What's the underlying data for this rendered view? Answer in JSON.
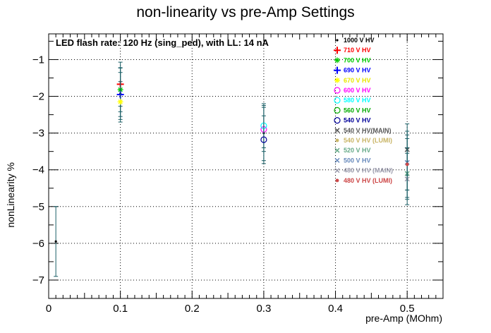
{
  "chart_data": {
    "type": "scatter",
    "title": "non-linearity vs pre-Amp Settings",
    "annotation": "LED flash rate: 120 Hz  (sing_ped), with LL: 14 nA",
    "xlabel": "pre-Amp (MOhm)",
    "ylabel": "nonLinearity %",
    "xlim": [
      0,
      0.55
    ],
    "ylim": [
      -7.5,
      -0.3
    ],
    "x_ticks": [
      0,
      0.1,
      0.2,
      0.3,
      0.4,
      0.5
    ],
    "x_tick_labels": [
      "0",
      "0.1",
      "0.2",
      "0.3",
      "0.4",
      "0.5"
    ],
    "y_ticks": [
      -7,
      -6,
      -5,
      -4,
      -3,
      -2,
      -1
    ],
    "y_tick_labels": [
      "−7",
      "−6",
      "−5",
      "−4",
      "−3",
      "−2",
      "−1"
    ],
    "grid": true,
    "legend_position": "top-right",
    "series": [
      {
        "name": "1000 V HV",
        "color": "#000000",
        "marker": "dot",
        "points": [
          {
            "x": 0.01,
            "y": -5.95,
            "err": 0.95
          },
          {
            "x": 0.1,
            "y": -1.93,
            "err": 0.7
          },
          {
            "x": 0.3,
            "y": -3.0,
            "err": 0.75
          },
          {
            "x": 0.5,
            "y": -3.85,
            "err": 0.9
          }
        ]
      },
      {
        "name": "710 V HV",
        "color": "#ff0000",
        "marker": "plus",
        "points": [
          {
            "x": 0.1,
            "y": -1.67,
            "err": 0.6
          }
        ]
      },
      {
        "name": "700 V HV",
        "color": "#00cc00",
        "marker": "star",
        "points": [
          {
            "x": 0.1,
            "y": -1.82,
            "err": 0.6
          }
        ]
      },
      {
        "name": "690 V HV",
        "color": "#0000ff",
        "marker": "plus",
        "points": [
          {
            "x": 0.1,
            "y": -1.95,
            "err": 0.6
          }
        ]
      },
      {
        "name": "670 V HV",
        "color": "#ffff00",
        "marker": "star",
        "points": [
          {
            "x": 0.1,
            "y": -2.15,
            "err": 0.55
          }
        ]
      },
      {
        "name": "600 V HV",
        "color": "#ff00ff",
        "marker": "circle",
        "points": [
          {
            "x": 0.3,
            "y": -2.9,
            "err": 0.6
          }
        ]
      },
      {
        "name": "580 V HV",
        "color": "#00ffff",
        "marker": "circle",
        "points": [
          {
            "x": 0.3,
            "y": -2.8,
            "err": 0.6
          }
        ]
      },
      {
        "name": "560 V HV",
        "color": "#00aa00",
        "marker": "circle",
        "points": []
      },
      {
        "name": "540 V HV",
        "color": "#000099",
        "marker": "circle",
        "points": [
          {
            "x": 0.3,
            "y": -3.18,
            "err": 0.65
          }
        ]
      },
      {
        "name": "540 V HV(MAIN)",
        "color": "#555555",
        "marker": "cross",
        "points": [
          {
            "x": 0.5,
            "y": -3.45,
            "err": 0.7
          }
        ]
      },
      {
        "name": "540 V HV (LUMI)",
        "color": "#c8b464",
        "marker": "small-star",
        "points": []
      },
      {
        "name": "520 V HV",
        "color": "#66aa88",
        "marker": "cross",
        "points": [
          {
            "x": 0.5,
            "y": -4.1,
            "err": 0.7
          }
        ]
      },
      {
        "name": "500 V HV",
        "color": "#6688bb",
        "marker": "cross",
        "points": [
          {
            "x": 0.5,
            "y": -3.8,
            "err": 0.75
          }
        ]
      },
      {
        "name": "480 V HV (MAIN)",
        "color": "#9999aa",
        "marker": "cross",
        "points": [
          {
            "x": 0.5,
            "y": -4.25,
            "err": 0.7
          }
        ]
      },
      {
        "name": "480 V HV (LUMI)",
        "color": "#cc4444",
        "marker": "small-star",
        "points": [
          {
            "x": 0.5,
            "y": -3.85,
            "err": 0.7
          }
        ]
      }
    ]
  }
}
